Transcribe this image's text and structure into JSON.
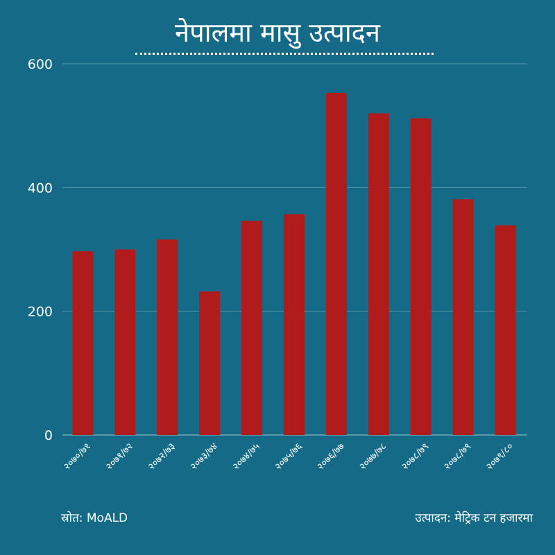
{
  "title": "नेपालमा मासु उत्पादन",
  "footer": {
    "source": "स्रोत: MoALD",
    "unit": "उत्पादन: मेट्रिक टन हजारमा"
  },
  "colors": {
    "background": "#156b87",
    "bar": "#b01c1c",
    "text": "#ffffff"
  },
  "chart_data": {
    "type": "bar",
    "categories": [
      "२०७०/७१",
      "२०७१/७२",
      "२०७२/७३",
      "२०७३/७४",
      "२०७४/७५",
      "२०७५/७६",
      "२०७६/७७",
      "२०७७/७८",
      "२०७८/७९",
      "२०७८/७९",
      "२०७९/८०"
    ],
    "values": [
      297,
      300,
      316,
      232,
      346,
      357,
      553,
      520,
      512,
      381,
      339
    ],
    "ylim": [
      0,
      600
    ],
    "yticks": [
      0,
      200,
      400,
      600
    ],
    "grid": true,
    "legend": "none"
  }
}
